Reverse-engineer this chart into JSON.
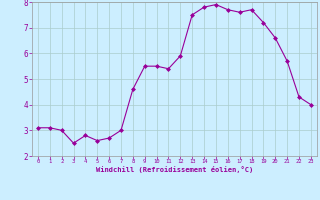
{
  "x": [
    0,
    1,
    2,
    3,
    4,
    5,
    6,
    7,
    8,
    9,
    10,
    11,
    12,
    13,
    14,
    15,
    16,
    17,
    18,
    19,
    20,
    21,
    22,
    23
  ],
  "y": [
    3.1,
    3.1,
    3.0,
    2.5,
    2.8,
    2.6,
    2.7,
    3.0,
    4.6,
    5.5,
    5.5,
    5.4,
    5.9,
    7.5,
    7.8,
    7.9,
    7.7,
    7.6,
    7.7,
    7.2,
    6.6,
    5.7,
    4.3,
    4.0
  ],
  "line_color": "#990099",
  "marker": "D",
  "marker_size": 2.0,
  "background_color": "#cceeff",
  "grid_color": "#aacccc",
  "xlabel": "Windchill (Refroidissement éolien,°C)",
  "xlabel_color": "#990099",
  "tick_color": "#990099",
  "spine_color": "#999999",
  "ylim": [
    2,
    8
  ],
  "xlim": [
    -0.5,
    23.5
  ],
  "yticks": [
    2,
    3,
    4,
    5,
    6,
    7,
    8
  ],
  "xticks": [
    0,
    1,
    2,
    3,
    4,
    5,
    6,
    7,
    8,
    9,
    10,
    11,
    12,
    13,
    14,
    15,
    16,
    17,
    18,
    19,
    20,
    21,
    22,
    23
  ]
}
